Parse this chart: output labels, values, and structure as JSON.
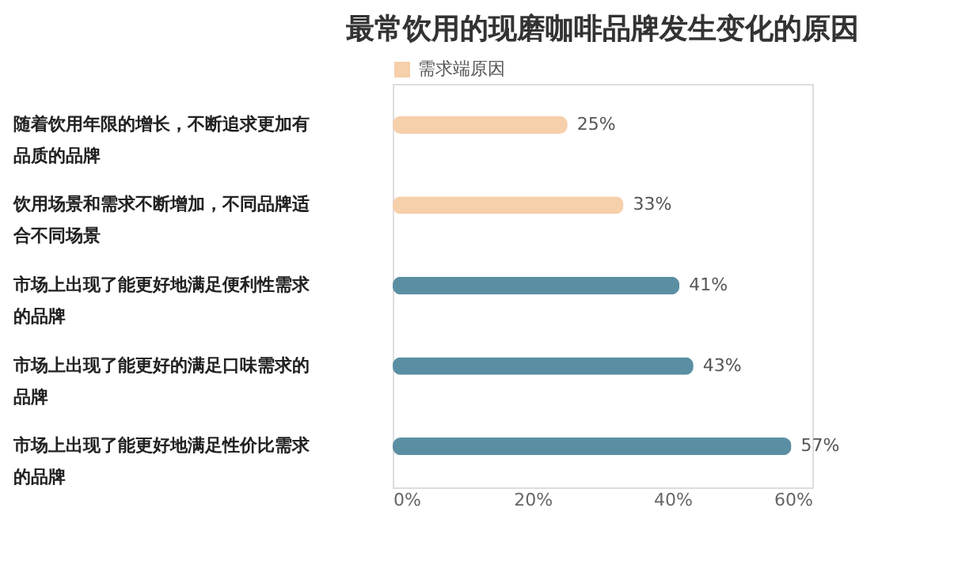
{
  "chart_data": {
    "type": "bar",
    "orientation": "horizontal",
    "title": "最常饮用的现磨咖啡品牌发生变化的原因",
    "categories": [
      "随着饮用年限的增长，不断追求更加有品质的品牌",
      "饮用场景和需求不断增加，不同品牌适合不同场景",
      "市场上出现了能更好地满足便利性需求的品牌",
      "市场上出现了能更好的满足口味需求的品牌",
      "市场上出现了能更好地满足性价比需求的品牌"
    ],
    "series": [
      {
        "name": "需求端原因",
        "colors": [
          "#f6cfab",
          "#f6cfab",
          "#5a8fa3",
          "#5a8fa3",
          "#5a8fa3"
        ],
        "values": [
          25,
          33,
          41,
          43,
          57
        ],
        "value_labels": [
          "25%",
          "33%",
          "41%",
          "43%",
          "57%"
        ]
      }
    ],
    "xlim": [
      0,
      60
    ],
    "xticks": [
      {
        "value": 0,
        "label": "0%"
      },
      {
        "value": 20,
        "label": "20%"
      },
      {
        "value": 40,
        "label": "40%"
      },
      {
        "value": 60,
        "label": "60%"
      }
    ],
    "grid": false,
    "legend": "top left"
  }
}
